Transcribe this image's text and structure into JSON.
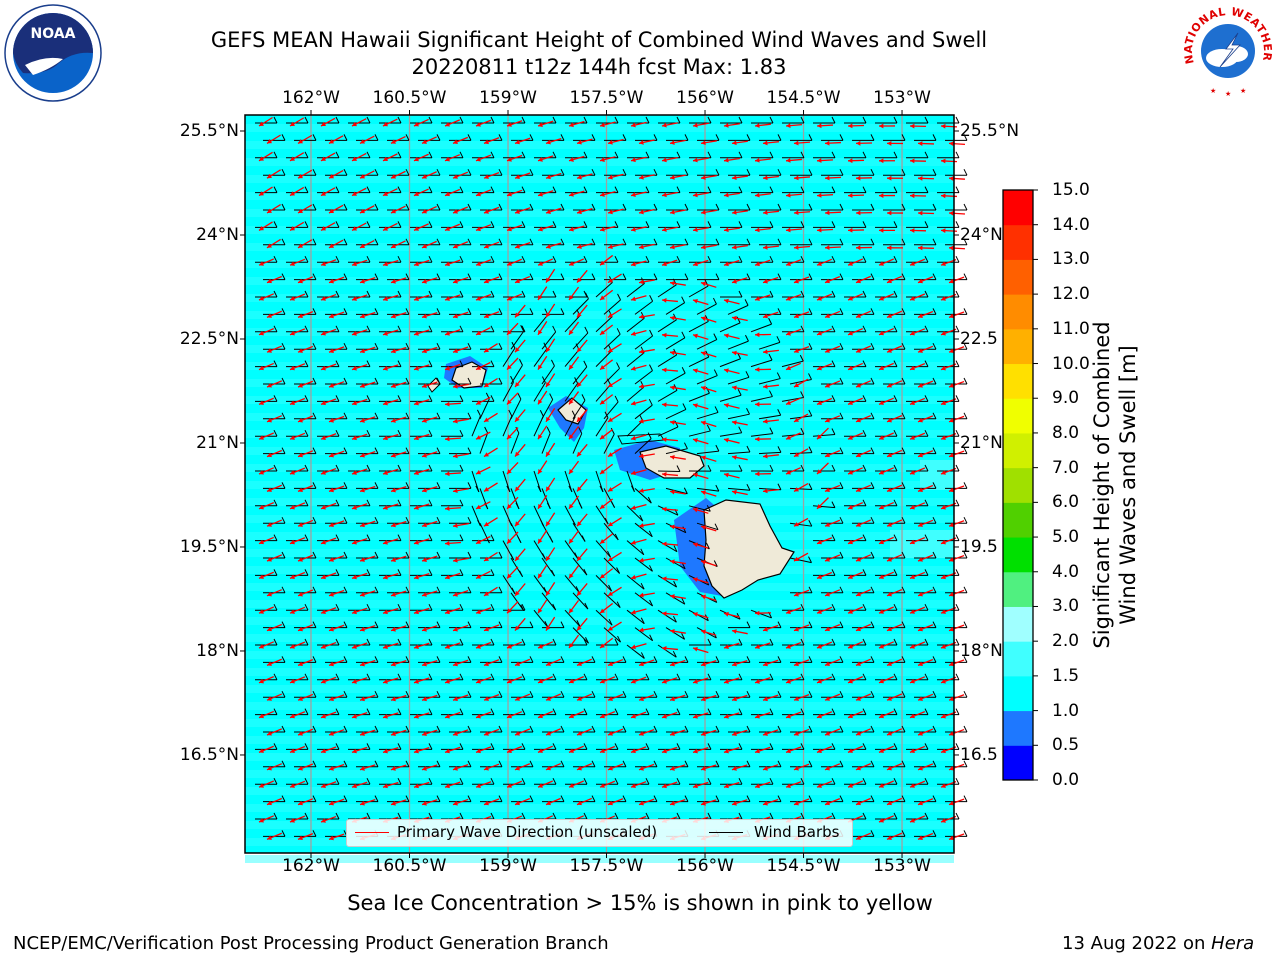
{
  "title": {
    "line1": "GEFS MEAN Hawaii Significant Height of Combined Wind Waves and Swell",
    "line2": "20220811 t12z 144h fcst   Max: 1.83"
  },
  "axes": {
    "lon_labels": [
      "162°W",
      "160.5°W",
      "159°W",
      "157.5°W",
      "156°W",
      "154.5°W",
      "153°W"
    ],
    "lat_labels_left": [
      "25.5°N",
      "24°N",
      "22.5°N",
      "21°N",
      "19.5°N",
      "18°N",
      "16.5°N"
    ],
    "lat_labels_right": [
      "25.5°N",
      "24°N",
      "22.5",
      "21°N",
      "19.5",
      "18°N",
      "16.5"
    ],
    "lon_values": [
      -162,
      -160.5,
      -159,
      -157.5,
      -156,
      -154.5,
      -153
    ],
    "lat_values": [
      25.5,
      24,
      22.5,
      21,
      19.5,
      18,
      16.5
    ]
  },
  "colorbar": {
    "title_line1": "Significant Height of Combined",
    "title_line2": "Wind Waves and Swell [m]",
    "tick_labels": [
      "0.0",
      "0.5",
      "1.0",
      "1.5",
      "2.0",
      "3.0",
      "4.0",
      "5.0",
      "6.0",
      "7.0",
      "8.0",
      "9.0",
      "10.0",
      "11.0",
      "12.0",
      "13.0",
      "14.0",
      "15.0"
    ],
    "colors": [
      "#0000ff",
      "#1e78ff",
      "#00ffff",
      "#40ffff",
      "#a0ffff",
      "#50f080",
      "#00e000",
      "#50d000",
      "#a0e000",
      "#d0f000",
      "#f0ff00",
      "#ffe000",
      "#ffb000",
      "#ff8c00",
      "#ff6000",
      "#ff3000",
      "#ff0000"
    ]
  },
  "map": {
    "ocean_color": "#00ffff",
    "land_color": "#efead8",
    "wave_arrow_color": "#ff0000",
    "barb_color": "#000000"
  },
  "legend": {
    "wave_label": "Primary Wave Direction (unscaled)",
    "barb_label": "Wind Barbs"
  },
  "footer": {
    "note": "Sea Ice Concentration > 15% is shown in pink to yellow",
    "left": "NCEP/EMC/Verification Post Processing Product Generation Branch",
    "right_date": "13 Aug 2022 on ",
    "right_host": "Hera"
  },
  "logos": {
    "noaa_text": "NOAA",
    "nws_text": "NATIONAL WEATHER SERVICE"
  }
}
